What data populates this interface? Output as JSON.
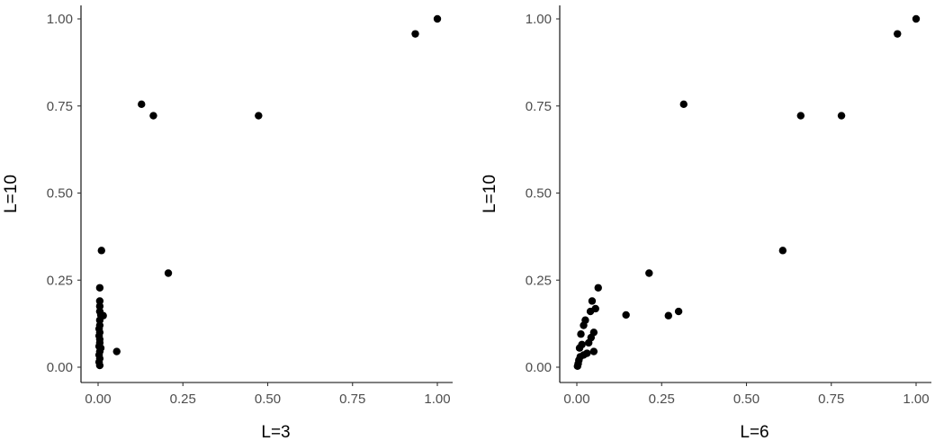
{
  "chart_data": [
    {
      "type": "scatter",
      "xlabel": "L=3",
      "ylabel": "L=10",
      "xlim": [
        0,
        1
      ],
      "ylim": [
        0,
        1
      ],
      "xticks": [
        "0.00",
        "0.25",
        "0.50",
        "0.75",
        "1.00"
      ],
      "yticks": [
        "0.00",
        "0.25",
        "0.50",
        "0.75",
        "1.00"
      ],
      "grid": false,
      "point_color": "#000000",
      "points": [
        {
          "x": 1.0,
          "y": 1.0
        },
        {
          "x": 0.935,
          "y": 0.957
        },
        {
          "x": 0.128,
          "y": 0.755
        },
        {
          "x": 0.163,
          "y": 0.722
        },
        {
          "x": 0.473,
          "y": 0.722
        },
        {
          "x": 0.207,
          "y": 0.27
        },
        {
          "x": 0.01,
          "y": 0.335
        },
        {
          "x": 0.005,
          "y": 0.228
        },
        {
          "x": 0.005,
          "y": 0.19
        },
        {
          "x": 0.005,
          "y": 0.175
        },
        {
          "x": 0.005,
          "y": 0.16
        },
        {
          "x": 0.008,
          "y": 0.15
        },
        {
          "x": 0.015,
          "y": 0.148
        },
        {
          "x": 0.005,
          "y": 0.135
        },
        {
          "x": 0.005,
          "y": 0.12
        },
        {
          "x": 0.003,
          "y": 0.11
        },
        {
          "x": 0.005,
          "y": 0.1
        },
        {
          "x": 0.003,
          "y": 0.09
        },
        {
          "x": 0.005,
          "y": 0.08
        },
        {
          "x": 0.005,
          "y": 0.07
        },
        {
          "x": 0.003,
          "y": 0.06
        },
        {
          "x": 0.008,
          "y": 0.055
        },
        {
          "x": 0.005,
          "y": 0.045
        },
        {
          "x": 0.003,
          "y": 0.035
        },
        {
          "x": 0.005,
          "y": 0.025
        },
        {
          "x": 0.003,
          "y": 0.015
        },
        {
          "x": 0.005,
          "y": 0.005
        },
        {
          "x": 0.055,
          "y": 0.045
        }
      ]
    },
    {
      "type": "scatter",
      "xlabel": "L=6",
      "ylabel": "L=10",
      "xlim": [
        0,
        1
      ],
      "ylim": [
        0,
        1
      ],
      "xticks": [
        "0.00",
        "0.25",
        "0.50",
        "0.75",
        "1.00"
      ],
      "yticks": [
        "0.00",
        "0.25",
        "0.50",
        "0.75",
        "1.00"
      ],
      "grid": false,
      "point_color": "#000000",
      "points": [
        {
          "x": 1.0,
          "y": 1.0
        },
        {
          "x": 0.945,
          "y": 0.957
        },
        {
          "x": 0.315,
          "y": 0.755
        },
        {
          "x": 0.66,
          "y": 0.722
        },
        {
          "x": 0.78,
          "y": 0.722
        },
        {
          "x": 0.607,
          "y": 0.335
        },
        {
          "x": 0.213,
          "y": 0.27
        },
        {
          "x": 0.3,
          "y": 0.16
        },
        {
          "x": 0.145,
          "y": 0.15
        },
        {
          "x": 0.27,
          "y": 0.148
        },
        {
          "x": 0.063,
          "y": 0.228
        },
        {
          "x": 0.045,
          "y": 0.19
        },
        {
          "x": 0.055,
          "y": 0.168
        },
        {
          "x": 0.04,
          "y": 0.16
        },
        {
          "x": 0.025,
          "y": 0.135
        },
        {
          "x": 0.02,
          "y": 0.12
        },
        {
          "x": 0.05,
          "y": 0.1
        },
        {
          "x": 0.042,
          "y": 0.085
        },
        {
          "x": 0.012,
          "y": 0.095
        },
        {
          "x": 0.035,
          "y": 0.07
        },
        {
          "x": 0.015,
          "y": 0.065
        },
        {
          "x": 0.008,
          "y": 0.055
        },
        {
          "x": 0.05,
          "y": 0.045
        },
        {
          "x": 0.03,
          "y": 0.04
        },
        {
          "x": 0.02,
          "y": 0.035
        },
        {
          "x": 0.01,
          "y": 0.03
        },
        {
          "x": 0.006,
          "y": 0.02
        },
        {
          "x": 0.004,
          "y": 0.01
        },
        {
          "x": 0.002,
          "y": 0.003
        }
      ]
    }
  ]
}
